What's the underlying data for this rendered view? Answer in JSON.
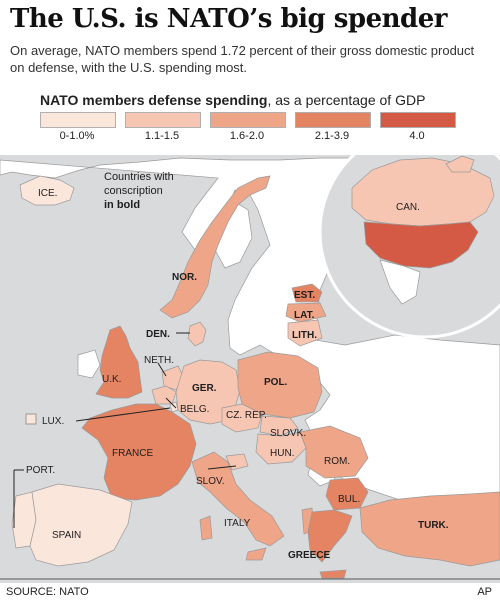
{
  "header": {
    "title": "The U.S. is NATO’s big spender",
    "subtitle": "On average, NATO members spend 1.72 percent of their gross domestic product on defense, with the U.S. spending most."
  },
  "legend": {
    "title_bold": "NATO members defense spending",
    "title_rest": ", as a percentage of GDP",
    "bins": [
      {
        "label": "0-1.0%",
        "color": "#fbe6dc"
      },
      {
        "label": "1.1-1.5",
        "color": "#f6c6b2"
      },
      {
        "label": "1.6-2.0",
        "color": "#efa587"
      },
      {
        "label": "2.1-3.9",
        "color": "#e48463"
      },
      {
        "label": "4.0",
        "color": "#d45a45"
      }
    ]
  },
  "note": {
    "line1": "Countries with",
    "line2": "conscription",
    "line3": "in bold"
  },
  "countries": {
    "ice": "ICE.",
    "can": "CAN.",
    "nor": "NOR.",
    "est": "EST.",
    "lat": "LAT.",
    "lith": "LITH.",
    "den": "DEN.",
    "neth": "NETH.",
    "uk": "U.K.",
    "ger": "GER.",
    "pol": "POL.",
    "belg": "BELG.",
    "lux": "LUX.",
    "czrep": "CZ. REP.",
    "slovk": "SLOVK.",
    "hun": "HUN.",
    "france": "FRANCE",
    "rom": "ROM.",
    "port": "PORT.",
    "slov": "SLOV.",
    "bul": "BUL.",
    "spain": "SPAIN",
    "italy": "ITALY",
    "turk": "TURK.",
    "greece": "GREECE"
  },
  "footer": {
    "source": "SOURCE: NATO",
    "credit": "AP"
  }
}
